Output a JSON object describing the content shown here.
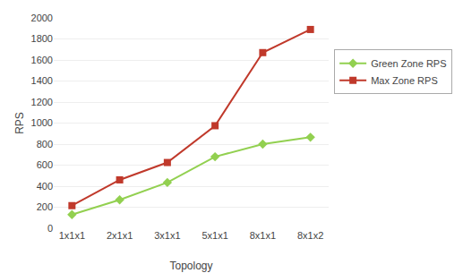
{
  "chart_data": {
    "type": "line",
    "categories": [
      "1x1x1",
      "2x1x1",
      "3x1x1",
      "5x1x1",
      "8x1x1",
      "8x1x2"
    ],
    "series": [
      {
        "name": "Green Zone RPS",
        "color": "#92d050",
        "marker": "diamond",
        "values": [
          130,
          270,
          435,
          680,
          800,
          865
        ]
      },
      {
        "name": "Max Zone RPS",
        "color": "#c0392b",
        "marker": "square",
        "values": [
          215,
          460,
          625,
          975,
          1670,
          1890
        ]
      }
    ],
    "xlabel": "Topology",
    "ylabel": "RPS",
    "ylim": [
      0,
      2000
    ],
    "yticks": [
      0,
      200,
      400,
      600,
      800,
      1000,
      1200,
      1400,
      1600,
      1800,
      2000
    ],
    "grid": true,
    "legend": "right"
  }
}
